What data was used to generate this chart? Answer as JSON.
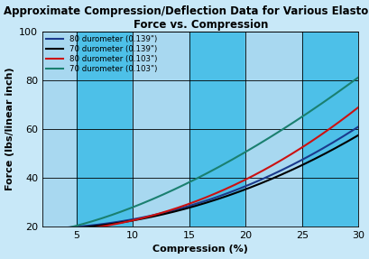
{
  "title": "Approximate Compression/Deflection Data for Various Elastomers\nForce vs. Compression",
  "xlabel": "Compression (%)",
  "ylabel": "Force (lbs/linear inch)",
  "xlim": [
    2,
    30
  ],
  "ylim": [
    20,
    100
  ],
  "xticks": [
    5,
    10,
    15,
    20,
    25,
    30
  ],
  "yticks": [
    20,
    40,
    60,
    80,
    100
  ],
  "bg_light": "#A8D8F0",
  "bg_dark": "#4DC0E8",
  "title_fontsize": 8.5,
  "label_fontsize": 8,
  "tick_fontsize": 8,
  "params": [
    {
      "label": "80 durometer (0.139\")",
      "color": "#1B3A8C",
      "a": 0.028,
      "b": 2.15,
      "c": 19.0
    },
    {
      "label": "70 durometer (0.139\")",
      "color": "#000000",
      "a": 0.033,
      "b": 2.08,
      "c": 18.5
    },
    {
      "label": "80 durometer (0.103\")",
      "color": "#CC1111",
      "a": 0.038,
      "b": 2.12,
      "c": 17.5
    },
    {
      "label": "70 durometer (0.103\")",
      "color": "#1A8070",
      "a": 0.3,
      "b": 1.58,
      "c": 16.5
    }
  ],
  "stripe_edges": [
    2,
    5,
    10,
    15,
    20,
    25,
    30
  ],
  "stripe_colors": [
    "#A8D8F0",
    "#4DC0E8",
    "#A8D8F0",
    "#4DC0E8",
    "#A8D8F0",
    "#4DC0E8"
  ],
  "grid_hlines": [
    20,
    40,
    60,
    80,
    100
  ],
  "grid_vlines": [
    5,
    10,
    15,
    20,
    25
  ]
}
